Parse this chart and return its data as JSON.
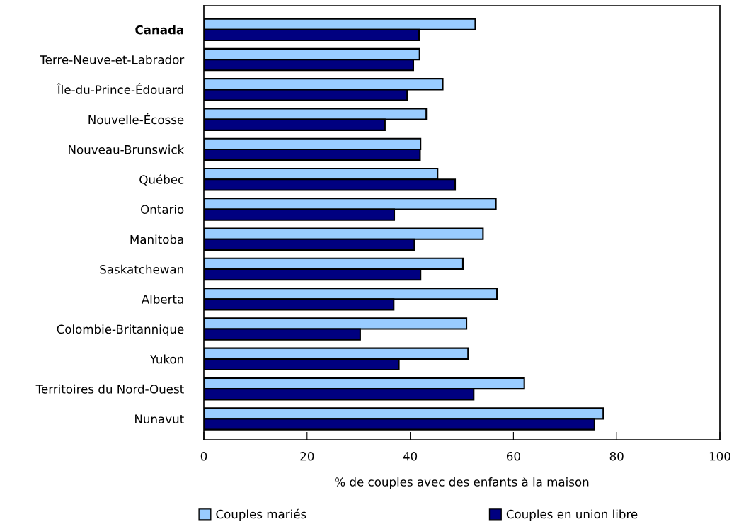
{
  "chart_data": {
    "type": "bar",
    "orientation": "horizontal",
    "xlabel": "% de couples avec des enfants à la maison",
    "categories": [
      "Canada",
      "Terre-Neuve-et-Labrador",
      "Île-du-Prince-Édouard",
      "Nouvelle-Écosse",
      "Nouveau-Brunswick",
      "Québec",
      "Ontario",
      "Manitoba",
      "Saskatchewan",
      "Alberta",
      "Colombie-Britannique",
      "Yukon",
      "Territoires du Nord-Ouest",
      "Nunavut"
    ],
    "series": [
      {
        "name": "Couples mariés",
        "color": "#99ccff",
        "values": [
          52.6,
          41.8,
          46.3,
          43.1,
          42.0,
          45.3,
          56.6,
          54.1,
          50.2,
          56.8,
          50.9,
          51.2,
          62.1,
          77.4
        ]
      },
      {
        "name": "Couples en union libre",
        "color": "#000080",
        "values": [
          41.7,
          40.6,
          39.4,
          35.1,
          41.9,
          48.7,
          36.9,
          40.8,
          42.0,
          36.8,
          30.3,
          37.8,
          52.3,
          75.7
        ]
      }
    ],
    "xlim": [
      0,
      100
    ],
    "xticks": [
      0,
      20,
      40,
      60,
      80,
      100
    ],
    "grid": false,
    "legend": "bottom"
  }
}
